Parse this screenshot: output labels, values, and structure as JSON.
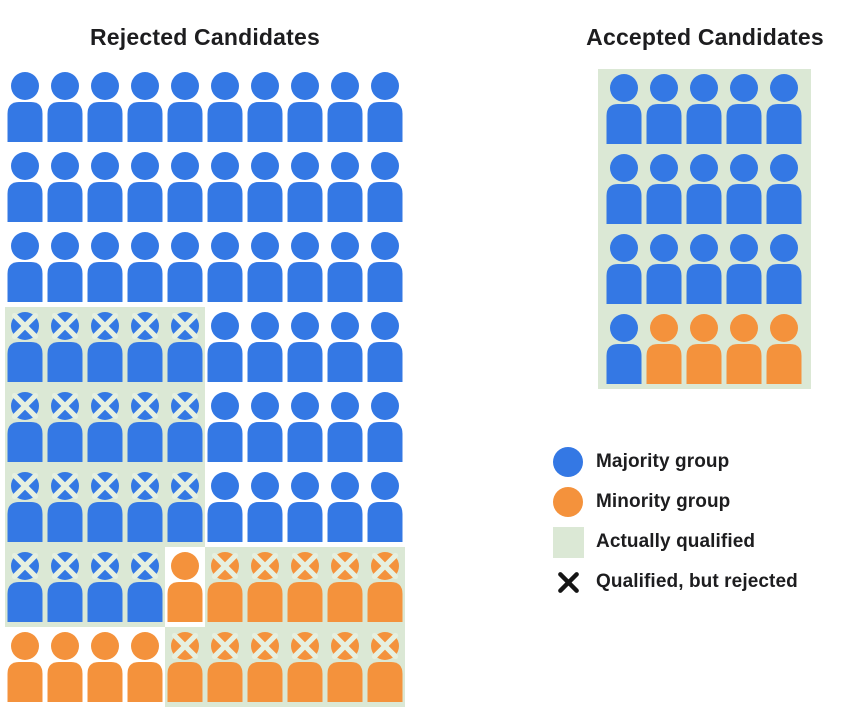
{
  "titles": {
    "rejected": "Rejected Candidates",
    "accepted": "Accepted Candidates"
  },
  "colors": {
    "majority_blue": "#3478E4",
    "minority_orange": "#F4923C",
    "qualified_green": "#DBE8D5",
    "icon_cross": "#E6F0E0",
    "legend_cross": "#151515",
    "text": "#1D1D1F",
    "background": "#FFFFFF"
  },
  "cell_codes": {
    "B": {
      "group": "majority",
      "qualified_highlight": false,
      "crossed": false
    },
    "Q": {
      "group": "majority",
      "qualified_highlight": true,
      "crossed": true
    },
    "O": {
      "group": "minority",
      "qualified_highlight": false,
      "crossed": false
    },
    "q": {
      "group": "minority",
      "qualified_highlight": true,
      "crossed": true
    }
  },
  "rejected_grid": {
    "columns": 10,
    "rows": [
      "BBBBBBBBBB",
      "BBBBBBBBBB",
      "BBBBBBBBBB",
      "QQQQQBBBBB",
      "QQQQQBBBBB",
      "QQQQQBBBBB",
      "QQQQOqqqqq",
      "OOOOqqqqqq"
    ]
  },
  "accepted_grid": {
    "columns": 5,
    "rows": [
      "BBBBB",
      "BBBBB",
      "BBBBB",
      "BOOOO"
    ],
    "all_on_qualified_background": true
  },
  "legend": {
    "items": [
      {
        "marker": "majority-circle",
        "label": "Majority group"
      },
      {
        "marker": "minority-circle",
        "label": "Minority group"
      },
      {
        "marker": "qualified-square",
        "label": "Actually qualified"
      },
      {
        "marker": "cross",
        "label": "Qualified, but rejected"
      }
    ]
  }
}
